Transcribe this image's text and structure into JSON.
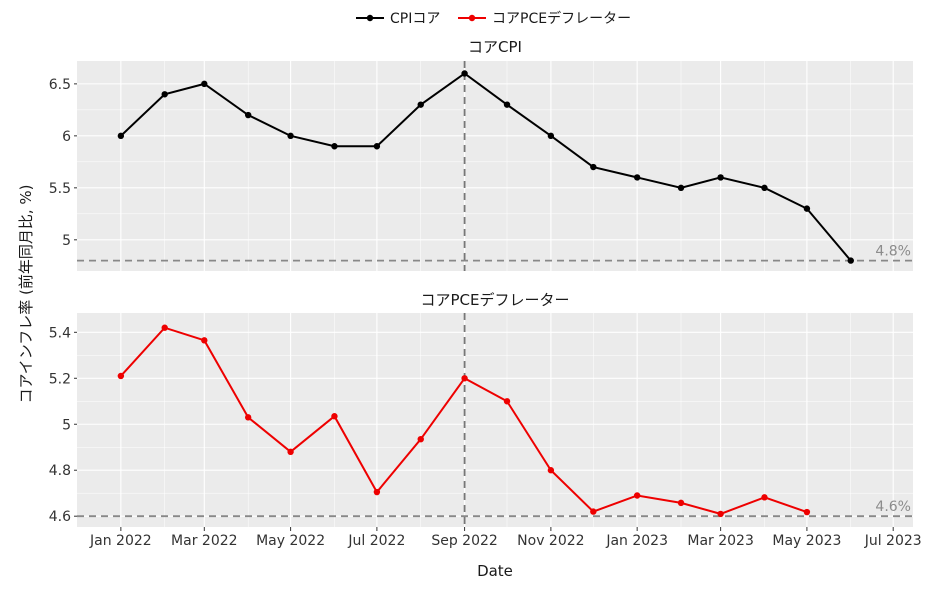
{
  "legend": {
    "items": [
      {
        "name": "CPIコア",
        "color": "#000000"
      },
      {
        "name": "コアPCEデフレーター",
        "color": "#ee0000"
      }
    ],
    "placement": "top-center"
  },
  "axes": {
    "xlabel": "Date",
    "ylabel": "コアインフレ率 (前年同月比, %)"
  },
  "chart_data": [
    {
      "type": "line",
      "title": "コアCPI",
      "series": [
        {
          "name": "CPIコア",
          "color": "#000000",
          "x": [
            "2022-01",
            "2022-02",
            "2022-03",
            "2022-04",
            "2022-05",
            "2022-06",
            "2022-07",
            "2022-08",
            "2022-09",
            "2022-10",
            "2022-11",
            "2022-12",
            "2023-01",
            "2023-02",
            "2023-03",
            "2023-04",
            "2023-05",
            "2023-06"
          ],
          "values": [
            6.0,
            6.4,
            6.5,
            6.2,
            6.0,
            5.9,
            5.9,
            6.3,
            6.6,
            6.3,
            6.0,
            5.7,
            5.6,
            5.5,
            5.6,
            5.5,
            5.3,
            4.8
          ]
        }
      ],
      "yticks": [
        5,
        5.5,
        6,
        6.5
      ],
      "ytick_labels": [
        "5",
        "5.5",
        "6",
        "6.5"
      ],
      "ylim": [
        4.7,
        6.72
      ],
      "reference_line": {
        "value": 4.8,
        "label": "4.8%",
        "color": "#888888"
      },
      "vertical_line": {
        "x": "2022-09",
        "color": "#777777"
      },
      "grid": true
    },
    {
      "type": "line",
      "title": "コアPCEデフレーター",
      "series": [
        {
          "name": "コアPCEデフレーター",
          "color": "#ee0000",
          "x": [
            "2022-01",
            "2022-02",
            "2022-03",
            "2022-04",
            "2022-05",
            "2022-06",
            "2022-07",
            "2022-08",
            "2022-09",
            "2022-10",
            "2022-11",
            "2022-12",
            "2023-01",
            "2023-02",
            "2023-03",
            "2023-04",
            "2023-05"
          ],
          "values": [
            5.21,
            5.42,
            5.365,
            5.03,
            4.88,
            5.035,
            4.705,
            4.935,
            5.2,
            5.1,
            4.8,
            4.62,
            4.69,
            4.658,
            4.61,
            4.682,
            4.618
          ]
        }
      ],
      "yticks": [
        4.6,
        4.8,
        5,
        5.2,
        5.4
      ],
      "ytick_labels": [
        "4.6",
        "4.8",
        "5",
        "5.2",
        "5.4"
      ],
      "ylim": [
        4.553,
        5.484
      ],
      "reference_line": {
        "value": 4.6,
        "label": "4.6%",
        "color": "#888888"
      },
      "vertical_line": {
        "x": "2022-09",
        "color": "#777777"
      },
      "grid": true
    }
  ],
  "x_axis": {
    "range": [
      "2021-12-01",
      "2023-07-15"
    ],
    "ticks": [
      "2022-01",
      "2022-03",
      "2022-05",
      "2022-07",
      "2022-09",
      "2022-11",
      "2023-01",
      "2023-03",
      "2023-05",
      "2023-07"
    ],
    "tick_labels": [
      "Jan 2022",
      "Mar 2022",
      "May 2022",
      "Jul 2022",
      "Sep 2022",
      "Nov 2022",
      "Jan 2023",
      "Mar 2023",
      "May 2023",
      "Jul 2023"
    ]
  },
  "style": {
    "panel_background": "#ebebeb",
    "grid_color": "#ffffff"
  }
}
